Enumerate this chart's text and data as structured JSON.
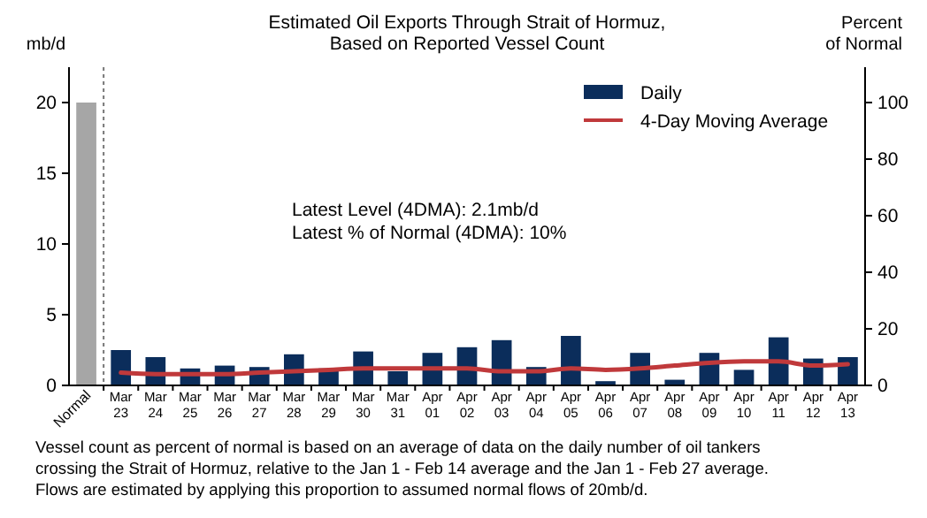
{
  "chart_data": {
    "type": "bar",
    "title": "Estimated Oil Exports Through Strait of Hormuz,\nBased on Reported Vessel Count",
    "ylabel": "mb/d",
    "y2label": "Percent\nof Normal",
    "categories": [
      "Normal",
      "Mar 23",
      "Mar 24",
      "Mar 25",
      "Mar 26",
      "Mar 27",
      "Mar 28",
      "Mar 29",
      "Mar 30",
      "Mar 31",
      "Apr 01",
      "Apr 02",
      "Apr 03",
      "Apr 04",
      "Apr 05",
      "Apr 06",
      "Apr 07",
      "Apr 08",
      "Apr 09",
      "Apr 10",
      "Apr 11",
      "Apr 12",
      "Apr 13"
    ],
    "series": [
      {
        "name": "Daily",
        "color": "#0b2d5b",
        "colors": [
          "#a6a6a6",
          "#0b2d5b",
          "#0b2d5b",
          "#0b2d5b",
          "#0b2d5b",
          "#0b2d5b",
          "#0b2d5b",
          "#0b2d5b",
          "#0b2d5b",
          "#0b2d5b",
          "#0b2d5b",
          "#0b2d5b",
          "#0b2d5b",
          "#0b2d5b",
          "#0b2d5b",
          "#0b2d5b",
          "#0b2d5b",
          "#0b2d5b",
          "#0b2d5b",
          "#0b2d5b",
          "#0b2d5b",
          "#0b2d5b",
          "#0b2d5b"
        ],
        "values": [
          20,
          2.5,
          2.0,
          1.2,
          1.4,
          1.3,
          2.2,
          1.2,
          2.4,
          1.0,
          2.3,
          2.7,
          3.2,
          1.3,
          3.5,
          0.3,
          2.3,
          0.4,
          2.3,
          1.1,
          3.4,
          1.9,
          2.0
        ]
      },
      {
        "name": "4-Day Moving Average",
        "type": "line",
        "color": "#c0393b",
        "values": [
          null,
          0.9,
          0.8,
          0.8,
          0.8,
          0.9,
          1.0,
          1.1,
          1.2,
          1.2,
          1.2,
          1.2,
          1.0,
          1.0,
          1.2,
          1.1,
          1.2,
          1.4,
          1.6,
          1.7,
          1.7,
          1.4,
          1.5
        ]
      }
    ],
    "ylim": [
      0,
      22.5
    ],
    "yticks": [
      0,
      5,
      10,
      15,
      20
    ],
    "y2lim": [
      0,
      112.5
    ],
    "y2ticks": [
      0,
      20,
      40,
      60,
      80,
      100
    ],
    "legend": "top right",
    "grid": false,
    "annotations": [
      "Latest Level (4DMA): 2.1mb/d",
      "Latest % of Normal (4DMA): 10%",
      "Vessel count as percent of normal is based on an average of data on the daily number of oil tankers crossing the Strait of Hormuz, relative to the Jan 1 - Feb 14 average and the Jan 1 - Feb 27 average. Flows are estimated by applying this proportion to assumed normal flows of 20mb/d."
    ]
  }
}
